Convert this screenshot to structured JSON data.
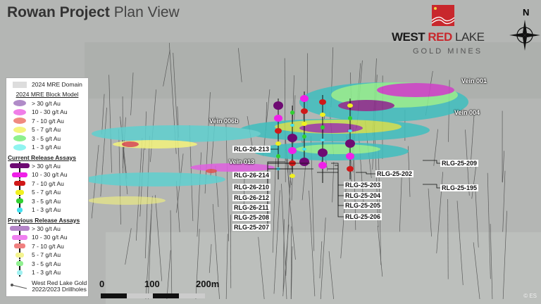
{
  "title": {
    "bold": "Rowan Project",
    "normal": "Plan View"
  },
  "logo": {
    "line1_a": "WEST",
    "line1_b": "RED",
    "line1_c": "LAKE",
    "line2": "GOLD MINES",
    "colors": {
      "red": "#c8282d",
      "dark": "#1a1a1a"
    }
  },
  "north_arrow": {
    "label": "N",
    "icon": "compass-rose-icon"
  },
  "legend": {
    "domain": "2024 MRE Domain",
    "block_model": {
      "title": "2024 MRE Block Model",
      "items": [
        {
          "label": "> 30 g/t Au",
          "color": "#b08cc8"
        },
        {
          "label": "10 - 30 g/t Au",
          "color": "#f07ee8"
        },
        {
          "label": "7 - 10 g/t Au",
          "color": "#f08a80"
        },
        {
          "label": "5 - 7 g/t Au",
          "color": "#f4f47c"
        },
        {
          "label": "3 - 5 g/t Au",
          "color": "#8ef08e"
        },
        {
          "label": "1 - 3 g/t Au",
          "color": "#90f4f0"
        }
      ]
    },
    "current": {
      "title": "Current Release Assays",
      "items": [
        {
          "label": "> 30 g/t Au",
          "color": "#6e0a72"
        },
        {
          "label": "10 - 30 g/t Au",
          "color": "#f020e8"
        },
        {
          "label": "7 - 10 g/t Au",
          "color": "#d01818"
        },
        {
          "label": "5 - 7 g/t Au",
          "color": "#f0f020"
        },
        {
          "label": "3 - 5 g/t Au",
          "color": "#30d030"
        },
        {
          "label": "1 - 3 g/t Au",
          "color": "#40e0f0"
        }
      ]
    },
    "previous": {
      "title": "Previous Release Assays",
      "items": [
        {
          "label": "> 30 g/t Au",
          "color": "#b484c8"
        },
        {
          "label": "10 - 30 g/t Au",
          "color": "#f080f0"
        },
        {
          "label": "7 - 10 g/t Au",
          "color": "#f08080"
        },
        {
          "label": "5 - 7 g/t Au",
          "color": "#f4f490"
        },
        {
          "label": "3 - 5 g/t Au",
          "color": "#90f090"
        },
        {
          "label": "1 - 3 g/t Au",
          "color": "#a0f0f0"
        }
      ]
    },
    "drillholes": {
      "line1": "West Red Lake Gold",
      "line2": "2022/2023 Drillholes"
    }
  },
  "veins": [
    "Vein 001",
    "Vein 004",
    "Vein 006b",
    "Vein 013"
  ],
  "drillholes": [
    "RLG-26-213",
    "RLG-26-214",
    "RLG-26-210",
    "RLG-26-212",
    "RLG-26-211",
    "RLG-25-208",
    "RLG-25-207",
    "RLG-25-202",
    "RLG-25-203",
    "RLG-25-204",
    "RLG-25-205",
    "RLG-25-206",
    "RLG-25-209",
    "RLG-25-195"
  ],
  "scale_bar": {
    "labels": [
      "0",
      "100",
      "200m"
    ]
  },
  "copyright": "© ES"
}
